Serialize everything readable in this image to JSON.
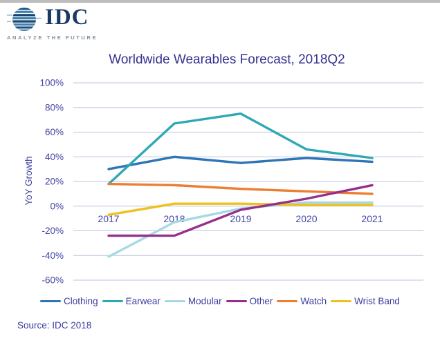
{
  "header": {
    "brand": "IDC",
    "tagline": "ANALYZE THE FUTURE"
  },
  "chart_title": "Worldwide Wearables Forecast, 2018Q2",
  "footer": {
    "source": "Source: IDC 2018"
  },
  "chart_data": {
    "type": "line",
    "title": "Worldwide Wearables Forecast, 2018Q2",
    "xlabel": "",
    "ylabel": "YoY Growth",
    "x_categories": [
      "2017",
      "2018",
      "2019",
      "2020",
      "2021"
    ],
    "ylim": [
      -60,
      100
    ],
    "yticks": [
      {
        "value": 100,
        "label": "100%"
      },
      {
        "value": 80,
        "label": "80%"
      },
      {
        "value": 60,
        "label": "60%"
      },
      {
        "value": 40,
        "label": "40%"
      },
      {
        "value": 20,
        "label": "20%"
      },
      {
        "value": 0,
        "label": "0%"
      },
      {
        "value": -20,
        "label": "-20%"
      },
      {
        "value": -40,
        "label": "-40%"
      },
      {
        "value": -60,
        "label": "-60%"
      }
    ],
    "grid": true,
    "legend_position": "bottom",
    "series": [
      {
        "name": "Clothing",
        "color": "#2E75B6",
        "values": [
          30,
          40,
          35,
          39,
          36
        ]
      },
      {
        "name": "Earwear",
        "color": "#2FA8B6",
        "values": [
          18,
          67,
          75,
          46,
          39
        ]
      },
      {
        "name": "Modular",
        "color": "#A5DAE4",
        "values": [
          -41,
          -13,
          -2,
          3,
          3
        ]
      },
      {
        "name": "Other",
        "color": "#962F8B",
        "values": [
          -24,
          -24,
          -3,
          6,
          17
        ]
      },
      {
        "name": "Watch",
        "color": "#ED7D31",
        "values": [
          18,
          17,
          14,
          12,
          10
        ]
      },
      {
        "name": "Wrist Band",
        "color": "#EEC11E",
        "values": [
          -7,
          2,
          2,
          1,
          1
        ]
      }
    ]
  },
  "colors": {
    "title_text": "#35318F",
    "axis_text": "#4145A3",
    "legend_text": "#3A3D9E",
    "gridline": "#BEC3DE",
    "top_strip": "#BDBDBD",
    "logo_navy": "#1B3A63",
    "logo_blue": "#3E7FB0",
    "logo_dark_stripe": "#17466F",
    "tagline_gray": "#7E909F"
  }
}
